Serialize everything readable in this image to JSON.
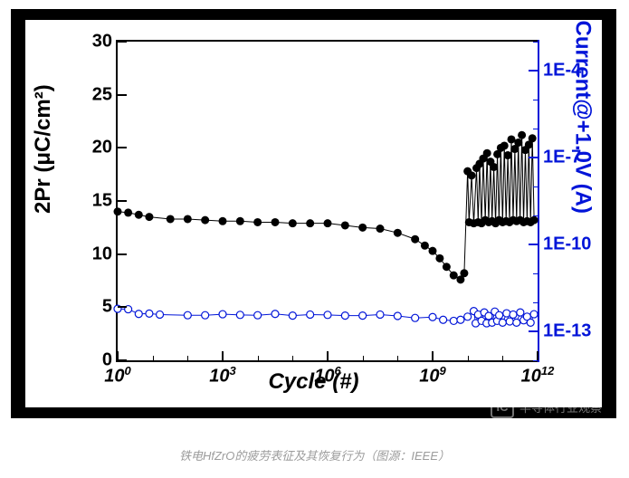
{
  "chart": {
    "type": "dual-axis-scatter",
    "background_color_outer": "#000000",
    "background_color": "#ffffff",
    "x_axis": {
      "title": "Cycle (#)",
      "scale": "log",
      "lim": [
        1,
        1000000000000.0
      ],
      "ticks": [
        1,
        1000.0,
        1000000.0,
        1000000000.0,
        1000000000000.0
      ],
      "tick_labels": [
        "10<sup>0</sup>",
        "10<sup>3</sup>",
        "10<sup>6</sup>",
        "10<sup>9</sup>",
        "10<sup>12</sup>"
      ],
      "tick_fontsize": 20
    },
    "y_left": {
      "title": "2Pr (μC/cm²)",
      "scale": "linear",
      "lim": [
        0,
        30
      ],
      "ticks": [
        0,
        5,
        10,
        15,
        20,
        25,
        30
      ],
      "tick_labels": [
        "0",
        "5",
        "10",
        "15",
        "20",
        "25",
        "30"
      ],
      "color": "#000000"
    },
    "y_right": {
      "title": "Current@+1.0V (A)",
      "scale": "log",
      "lim": [
        1e-14,
        0.001
      ],
      "ticks": [
        1e-13,
        1e-10,
        1e-07,
        0.0001
      ],
      "tick_labels": [
        "1E-13",
        "1E-10",
        "1E-7",
        "1E-4"
      ],
      "color": "#0014d8"
    },
    "series_2pr": {
      "marker": "filled-circle",
      "marker_size": 4.5,
      "color": "#000000",
      "line_width": 1,
      "points": [
        [
          1,
          14.0
        ],
        [
          2,
          13.9
        ],
        [
          4,
          13.7
        ],
        [
          8,
          13.5
        ],
        [
          32,
          13.3
        ],
        [
          100,
          13.3
        ],
        [
          316,
          13.2
        ],
        [
          1000,
          13.1
        ],
        [
          3162,
          13.1
        ],
        [
          10000,
          13.0
        ],
        [
          31623,
          13.0
        ],
        [
          100000,
          12.9
        ],
        [
          316228,
          12.9
        ],
        [
          1000000.0,
          12.9
        ],
        [
          3160000.0,
          12.7
        ],
        [
          10000000.0,
          12.5
        ],
        [
          31600000.0,
          12.4
        ],
        [
          100000000.0,
          12.0
        ],
        [
          316000000.0,
          11.4
        ],
        [
          600000000.0,
          10.8
        ],
        [
          1000000000.0,
          10.3
        ],
        [
          1600000000.0,
          9.6
        ],
        [
          2500000000.0,
          8.8
        ],
        [
          4000000000.0,
          8.0
        ],
        [
          6300000000.0,
          7.6
        ],
        [
          8000000000.0,
          8.2
        ],
        [
          10000000000.0,
          17.8
        ],
        [
          11000000000.0,
          13.0
        ],
        [
          13000000000.0,
          17.4
        ],
        [
          15000000000.0,
          12.9
        ],
        [
          18000000000.0,
          18.1
        ],
        [
          20000000000.0,
          13.0
        ],
        [
          22000000000.0,
          18.5
        ],
        [
          25000000000.0,
          12.9
        ],
        [
          28000000000.0,
          19.0
        ],
        [
          32000000000.0,
          13.2
        ],
        [
          36000000000.0,
          19.5
        ],
        [
          40000000000.0,
          13.0
        ],
        [
          45000000000.0,
          18.7
        ],
        [
          50000000000.0,
          13.1
        ],
        [
          56000000000.0,
          18.2
        ],
        [
          63000000000.0,
          12.9
        ],
        [
          71000000000.0,
          19.4
        ],
        [
          79000000000.0,
          13.2
        ],
        [
          89000000000.0,
          20.0
        ],
        [
          100000000000.0,
          13.0
        ],
        [
          112000000000.0,
          20.2
        ],
        [
          126000000000.0,
          13.1
        ],
        [
          141000000000.0,
          19.3
        ],
        [
          158000000000.0,
          13.0
        ],
        [
          178000000000.0,
          20.8
        ],
        [
          200000000000.0,
          13.2
        ],
        [
          224000000000.0,
          19.9
        ],
        [
          251000000000.0,
          13.1
        ],
        [
          282000000000.0,
          20.5
        ],
        [
          316000000000.0,
          13.2
        ],
        [
          355000000000.0,
          21.2
        ],
        [
          398000000000.0,
          13.0
        ],
        [
          447000000000.0,
          19.8
        ],
        [
          501000000000.0,
          13.1
        ],
        [
          562000000000.0,
          20.3
        ],
        [
          631000000000.0,
          13.0
        ],
        [
          708000000000.0,
          20.9
        ],
        [
          794000000000.0,
          13.2
        ]
      ]
    },
    "series_current": {
      "marker": "open-circle",
      "marker_size": 4,
      "color": "#0014d8",
      "line_width": 1,
      "points": [
        [
          1,
          6e-13
        ],
        [
          2,
          5.8e-13
        ],
        [
          4,
          4e-13
        ],
        [
          8,
          4.1e-13
        ],
        [
          16,
          3.8e-13
        ],
        [
          100,
          3.6e-13
        ],
        [
          316,
          3.6e-13
        ],
        [
          1000,
          3.9e-13
        ],
        [
          3162,
          3.7e-13
        ],
        [
          10000,
          3.6e-13
        ],
        [
          31623,
          4e-13
        ],
        [
          100000.0,
          3.5e-13
        ],
        [
          316228,
          3.8e-13
        ],
        [
          1000000.0,
          3.7e-13
        ],
        [
          3160000.0,
          3.5e-13
        ],
        [
          10000000.0,
          3.5e-13
        ],
        [
          31600000.0,
          3.8e-13
        ],
        [
          100000000.0,
          3.4e-13
        ],
        [
          316000000.0,
          2.9e-13
        ],
        [
          1000000000.0,
          3.1e-13
        ],
        [
          2000000000.0,
          2.5e-13
        ],
        [
          4000000000.0,
          2.3e-13
        ],
        [
          6300000000.0,
          2.5e-13
        ],
        [
          10000000000.0,
          3.2e-13
        ],
        [
          15000000000.0,
          5e-13
        ],
        [
          17000000000.0,
          1.9e-13
        ],
        [
          20000000000.0,
          3.8e-13
        ],
        [
          25000000000.0,
          2.3e-13
        ],
        [
          30000000000.0,
          4.5e-13
        ],
        [
          35000000000.0,
          1.9e-13
        ],
        [
          40000000000.0,
          3.4e-13
        ],
        [
          50000000000.0,
          2e-13
        ],
        [
          60000000000.0,
          4.8e-13
        ],
        [
          70000000000.0,
          2.3e-13
        ],
        [
          80000000000.0,
          3.6e-13
        ],
        [
          100000000000.0,
          2e-13
        ],
        [
          130000000000.0,
          4.2e-13
        ],
        [
          160000000000.0,
          2.2e-13
        ],
        [
          200000000000.0,
          3.8e-13
        ],
        [
          250000000000.0,
          2e-13
        ],
        [
          320000000000.0,
          4.5e-13
        ],
        [
          400000000000.0,
          2.4e-13
        ],
        [
          500000000000.0,
          3.2e-13
        ],
        [
          630000000000.0,
          2e-13
        ],
        [
          790000000000.0,
          3.9e-13
        ]
      ]
    }
  },
  "caption": "铁电HfZrO的疲劳表征及其恢复行为（图源：IEEE）",
  "watermark": {
    "icon_text": "IC",
    "text": "半导体行业观察"
  }
}
